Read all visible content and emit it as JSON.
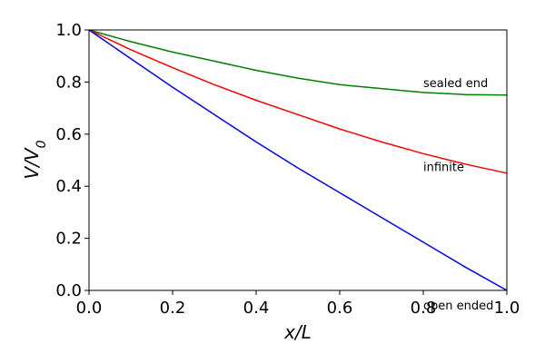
{
  "chart_data": {
    "type": "line",
    "title": "",
    "xlabel": "x/L",
    "ylabel": "V/V0",
    "xlim": [
      0.0,
      1.0
    ],
    "ylim": [
      0.0,
      1.0
    ],
    "x_ticks": [
      "0.0",
      "0.2",
      "0.4",
      "0.6",
      "0.8",
      "1.0"
    ],
    "y_ticks": [
      "0.0",
      "0.2",
      "0.4",
      "0.6",
      "0.8",
      "1.0"
    ],
    "grid": false,
    "legend": "none",
    "x": [
      0.0,
      0.1,
      0.2,
      0.3,
      0.4,
      0.5,
      0.6,
      0.7,
      0.8,
      0.9,
      1.0
    ],
    "series": [
      {
        "name": "sealed end",
        "color": "#008000",
        "values": [
          1.0,
          0.955,
          0.915,
          0.88,
          0.845,
          0.815,
          0.79,
          0.775,
          0.76,
          0.752,
          0.75
        ]
      },
      {
        "name": "infinite",
        "color": "#ff0000",
        "values": [
          1.0,
          0.924,
          0.855,
          0.79,
          0.73,
          0.675,
          0.62,
          0.57,
          0.525,
          0.485,
          0.45
        ]
      },
      {
        "name": "open ended",
        "color": "#0000ff",
        "values": [
          1.0,
          0.89,
          0.78,
          0.675,
          0.57,
          0.47,
          0.375,
          0.28,
          0.185,
          0.09,
          0.0
        ]
      }
    ]
  }
}
